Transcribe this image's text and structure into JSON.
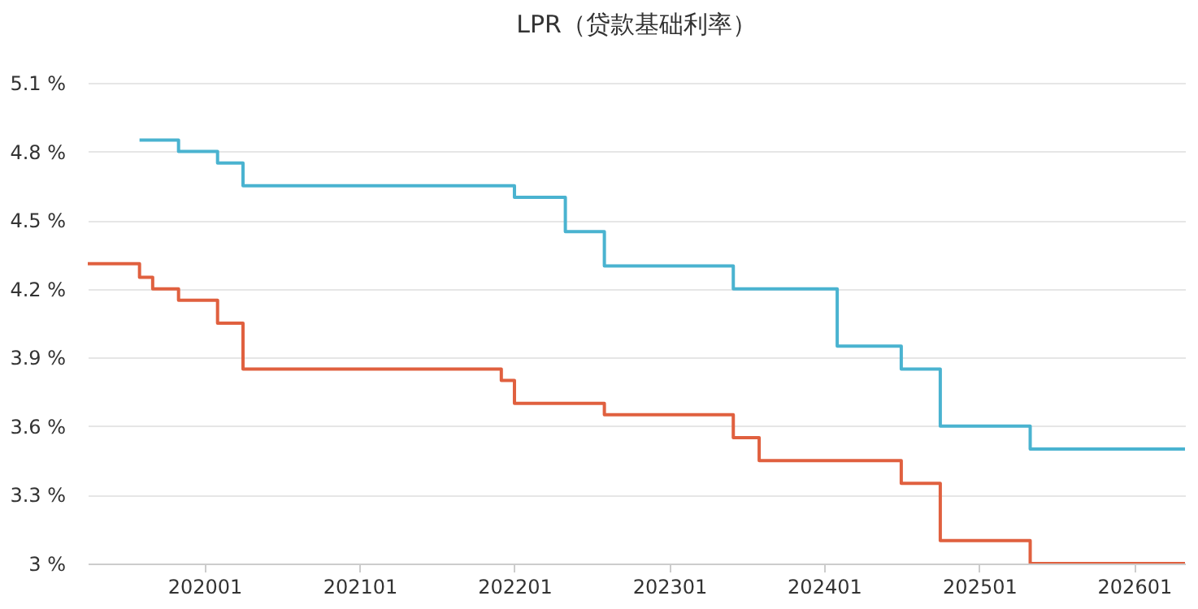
{
  "chart_data": {
    "type": "step",
    "title": "LPR（贷款基础利率）",
    "xlim": [
      "2019-04",
      "2026-05"
    ],
    "xticks": [
      {
        "value": "2020-01",
        "label": "202001"
      },
      {
        "value": "2021-01",
        "label": "202101"
      },
      {
        "value": "2022-01",
        "label": "202201"
      },
      {
        "value": "2023-01",
        "label": "202301"
      },
      {
        "value": "2024-01",
        "label": "202401"
      },
      {
        "value": "2025-01",
        "label": "202501"
      },
      {
        "value": "2026-01",
        "label": "202601"
      }
    ],
    "ylim": [
      3,
      5.1
    ],
    "yticks": [
      {
        "value": 3,
        "label": "3 %"
      },
      {
        "value": 3.3,
        "label": "3.3 %"
      },
      {
        "value": 3.6,
        "label": "3.6 %"
      },
      {
        "value": 3.9,
        "label": "3.9 %"
      },
      {
        "value": 4.2,
        "label": "4.2 %"
      },
      {
        "value": 4.5,
        "label": "4.5 %"
      },
      {
        "value": 4.8,
        "label": "4.8 %"
      },
      {
        "value": 5.1,
        "label": "5.1 %"
      }
    ],
    "grid": "y",
    "series": [
      {
        "color": "#4ab3d0",
        "x": [
          "2019-08",
          "2019-11",
          "2020-02",
          "2020-04",
          "2022-01",
          "2022-05",
          "2022-08",
          "2023-06",
          "2024-02",
          "2024-07",
          "2024-10",
          "2025-05",
          "2026-05"
        ],
        "values": [
          4.85,
          4.8,
          4.75,
          4.65,
          4.6,
          4.45,
          4.3,
          4.2,
          3.95,
          3.85,
          3.6,
          3.5,
          3.5
        ]
      },
      {
        "color": "#e0603f",
        "x": [
          "2019-04",
          "2019-08",
          "2019-09",
          "2019-11",
          "2020-02",
          "2020-04",
          "2021-12",
          "2022-01",
          "2022-08",
          "2023-06",
          "2023-08",
          "2024-07",
          "2024-10",
          "2025-05",
          "2026-05"
        ],
        "values": [
          4.31,
          4.25,
          4.2,
          4.15,
          4.05,
          3.85,
          3.8,
          3.7,
          3.65,
          3.55,
          3.45,
          3.35,
          3.1,
          3.0,
          3.0
        ]
      }
    ]
  }
}
